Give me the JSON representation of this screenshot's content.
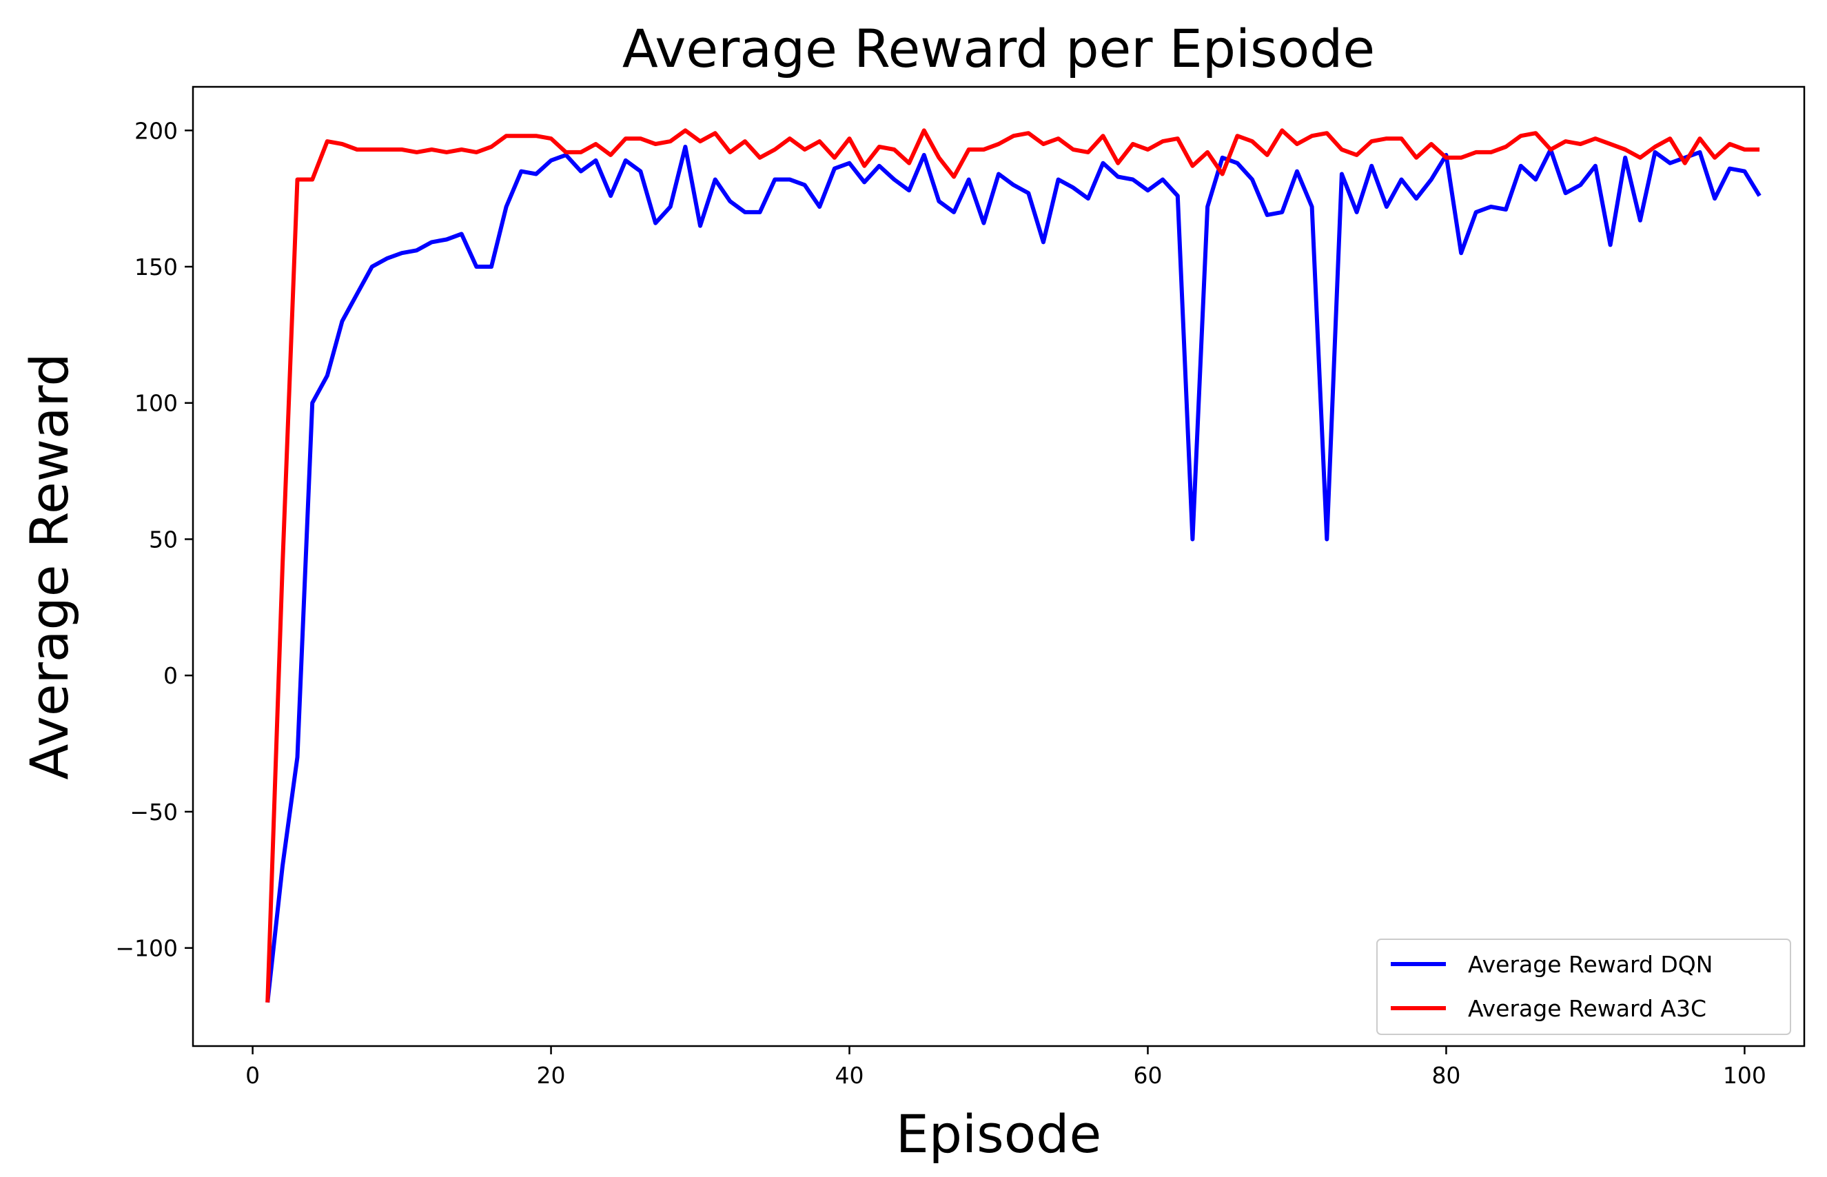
{
  "chart_data": {
    "type": "line",
    "title": "Average Reward per Episode",
    "xlabel": "Episode",
    "ylabel": "Average Reward",
    "xlim": [
      -4,
      104
    ],
    "ylim": [
      -136,
      216
    ],
    "xticks": [
      0,
      20,
      40,
      60,
      80,
      100
    ],
    "yticks": [
      -100,
      -50,
      0,
      50,
      100,
      150,
      200
    ],
    "grid": false,
    "legend_position": "lower-right",
    "colors": {
      "dqn": "#0000ff",
      "a3c": "#ff0000"
    },
    "x": [
      1,
      2,
      3,
      4,
      5,
      6,
      7,
      8,
      9,
      10,
      11,
      12,
      13,
      14,
      15,
      16,
      17,
      18,
      19,
      20,
      21,
      22,
      23,
      24,
      25,
      26,
      27,
      28,
      29,
      30,
      31,
      32,
      33,
      34,
      35,
      36,
      37,
      38,
      39,
      40,
      41,
      42,
      43,
      44,
      45,
      46,
      47,
      48,
      49,
      50,
      51,
      52,
      53,
      54,
      55,
      56,
      57,
      58,
      59,
      60,
      61,
      62,
      63,
      64,
      65,
      66,
      67,
      68,
      69,
      70,
      71,
      72,
      73,
      74,
      75,
      76,
      77,
      78,
      79,
      80,
      81,
      82,
      83,
      84,
      85,
      86,
      87,
      88,
      89,
      90,
      91,
      92,
      93,
      94,
      95,
      96,
      97,
      98,
      99,
      100,
      101
    ],
    "series": [
      {
        "name": "Average Reward DQN",
        "values": [
          -120,
          -70,
          -30,
          100,
          110,
          130,
          140,
          150,
          153,
          155,
          156,
          159,
          160,
          162,
          150,
          150,
          172,
          185,
          184,
          189,
          191,
          185,
          189,
          176,
          189,
          185,
          166,
          172,
          194,
          165,
          182,
          174,
          170,
          170,
          182,
          182,
          180,
          172,
          186,
          188,
          181,
          187,
          182,
          178,
          191,
          174,
          170,
          182,
          166,
          184,
          180,
          177,
          159,
          182,
          179,
          175,
          188,
          183,
          182,
          178,
          182,
          176,
          50,
          172,
          190,
          188,
          182,
          169,
          170,
          185,
          172,
          50,
          184,
          170,
          187,
          172,
          182,
          175,
          182,
          191,
          155,
          170,
          172,
          171,
          187,
          182,
          193,
          177,
          180,
          187,
          158,
          190,
          167,
          192,
          188,
          190,
          192,
          175,
          186,
          185,
          176
        ]
      },
      {
        "name": "Average Reward A3C",
        "values": [
          -120,
          40,
          182,
          182,
          196,
          195,
          193,
          193,
          193,
          193,
          192,
          193,
          192,
          193,
          192,
          194,
          198,
          198,
          198,
          197,
          192,
          192,
          195,
          191,
          197,
          197,
          195,
          196,
          200,
          196,
          199,
          192,
          196,
          190,
          193,
          197,
          193,
          196,
          190,
          197,
          187,
          194,
          193,
          188,
          200,
          190,
          183,
          193,
          193,
          195,
          198,
          199,
          195,
          197,
          193,
          192,
          198,
          188,
          195,
          193,
          196,
          197,
          187,
          192,
          184,
          198,
          196,
          191,
          200,
          195,
          198,
          199,
          193,
          191,
          196,
          197,
          197,
          190,
          195,
          190,
          190,
          192,
          192,
          194,
          198,
          199,
          193,
          196,
          195,
          197,
          195,
          193,
          190,
          194,
          197,
          188,
          197,
          190,
          195,
          193,
          193
        ]
      }
    ]
  }
}
